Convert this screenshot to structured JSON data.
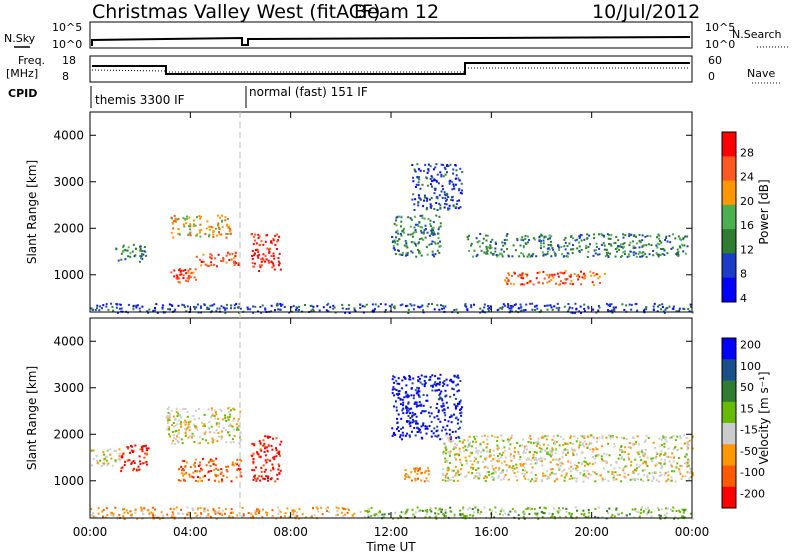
{
  "header": {
    "title": "Christmas Valley West (fitACF)",
    "beam": "Beam 12",
    "date": "10/Jul/2012"
  },
  "strips": {
    "nsky_label": "N.Sky",
    "nsearch_label": "N.Search",
    "noise_ticks": [
      "10^5",
      "10^0"
    ],
    "freq_label_1": "Freq.",
    "freq_label_2": "[MHz]",
    "freq_ticks": [
      "18",
      "8"
    ],
    "nave_label": "Nave",
    "nave_ticks": [
      "60",
      "0"
    ],
    "cpid_label": "CPID",
    "cpid_segments": [
      {
        "label": "themis 3300 IF",
        "start_hour": 0,
        "end_hour": 6
      },
      {
        "label": "normal (fast) 151 IF",
        "start_hour": 6,
        "end_hour": 24
      }
    ]
  },
  "colors": {
    "power_scale": [
      "#0000ff",
      "#1a3cc8",
      "#2e7d32",
      "#4caf50",
      "#ff9800",
      "#ff5722",
      "#ff0000"
    ],
    "velocity_scale": [
      "#0000ff",
      "#1b4f8a",
      "#2e7d32",
      "#66bb00",
      "#cccccc",
      "#ff9800",
      "#ff5a00",
      "#ff0000"
    ]
  },
  "chart_data": [
    {
      "type": "heatmap",
      "name": "power",
      "xlabel": "Time UT",
      "ylabel": "Slant Range [km]",
      "xlim": [
        0,
        24
      ],
      "ylim": [
        200,
        4500
      ],
      "x_ticks": [
        "00:00",
        "04:00",
        "08:00",
        "12:00",
        "16:00",
        "20:00",
        "00:00"
      ],
      "y_ticks": [
        1000,
        2000,
        3000,
        4000
      ],
      "colorbar_label": "Power [dB]",
      "colorbar_ticks": [
        4,
        8,
        12,
        16,
        20,
        24,
        28
      ],
      "features": [
        {
          "t0": 1.0,
          "t1": 2.2,
          "r0": 1300,
          "r1": 1700,
          "level": 2
        },
        {
          "t0": 3.2,
          "t1": 4.2,
          "r0": 850,
          "r1": 1150,
          "level": 5
        },
        {
          "t0": 3.2,
          "t1": 5.6,
          "r0": 1800,
          "r1": 2300,
          "level": 4
        },
        {
          "t0": 4.2,
          "t1": 5.9,
          "r0": 1200,
          "r1": 1500,
          "level": 5
        },
        {
          "t0": 6.4,
          "t1": 7.6,
          "r0": 1100,
          "r1": 1900,
          "level": 6
        },
        {
          "t0": 12.0,
          "t1": 14.0,
          "r0": 1400,
          "r1": 2300,
          "level": 2
        },
        {
          "t0": 12.8,
          "t1": 14.8,
          "r0": 2400,
          "r1": 3400,
          "level": 1
        },
        {
          "t0": 15.0,
          "t1": 23.8,
          "r0": 1400,
          "r1": 1900,
          "level": 2
        },
        {
          "t0": 16.5,
          "t1": 20.5,
          "r0": 800,
          "r1": 1100,
          "level": 5
        },
        {
          "t0": 0.0,
          "t1": 24.0,
          "r0": 200,
          "r1": 400,
          "level": 1
        }
      ]
    },
    {
      "type": "heatmap",
      "name": "velocity",
      "xlabel": "Time UT",
      "ylabel": "Slant Range [km]",
      "xlim": [
        0,
        24
      ],
      "ylim": [
        200,
        4500
      ],
      "x_ticks": [
        "00:00",
        "04:00",
        "08:00",
        "12:00",
        "16:00",
        "20:00",
        "00:00"
      ],
      "y_ticks": [
        1000,
        2000,
        3000,
        4000
      ],
      "colorbar_label": "Velocity [m s⁻¹]",
      "colorbar_ticks": [
        200,
        100,
        50,
        15,
        -15,
        -50,
        -100,
        -200
      ],
      "features": [
        {
          "t0": 0.0,
          "t1": 1.2,
          "r0": 1300,
          "r1": 1700,
          "level": 4
        },
        {
          "t0": 1.2,
          "t1": 2.3,
          "r0": 1200,
          "r1": 1800,
          "level": 7
        },
        {
          "t0": 3.0,
          "t1": 6.0,
          "r0": 1800,
          "r1": 2600,
          "level": 4
        },
        {
          "t0": 3.5,
          "t1": 6.0,
          "r0": 1000,
          "r1": 1500,
          "level": 6
        },
        {
          "t0": 6.4,
          "t1": 7.6,
          "r0": 1000,
          "r1": 2000,
          "level": 7
        },
        {
          "t0": 12.0,
          "t1": 14.8,
          "r0": 1900,
          "r1": 3300,
          "level": 0
        },
        {
          "t0": 12.5,
          "t1": 13.5,
          "r0": 1000,
          "r1": 1300,
          "level": 5
        },
        {
          "t0": 14.0,
          "t1": 24.0,
          "r0": 1000,
          "r1": 2000,
          "level": 4
        },
        {
          "t0": 0.0,
          "t1": 11.0,
          "r0": 200,
          "r1": 450,
          "level": 5
        },
        {
          "t0": 11.0,
          "t1": 24.0,
          "r0": 200,
          "r1": 450,
          "level": 3
        }
      ]
    }
  ]
}
